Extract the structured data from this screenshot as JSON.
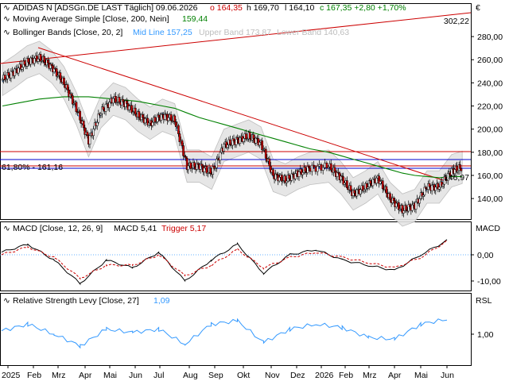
{
  "currency_symbol": "€",
  "header": {
    "line1_name": "ADIDAS N [ADSGn.DE LAST Täglich] 09.06.2026",
    "open_label": "o",
    "open": "164,35",
    "high_label": "h",
    "high": "169,70",
    "low_label": "l",
    "low": "164,10",
    "close_label": "c",
    "close": "167,35",
    "change": "+2,80",
    "change_pct": "+1,70%",
    "ma_label": "Moving Average Simple [Close, 200, Nein]",
    "ma_value": "159,44",
    "bb_label": "Bollinger Bands [Close, 20, 2]",
    "bb_mid": "Mid Line 157,25",
    "bb_upper": "Upper Band 173,87",
    "bb_lower": "Lower Band 140,63"
  },
  "annotations": {
    "trendline_value": "302,22",
    "fib_label": "61,80% - 161,16",
    "support_value": "146,97"
  },
  "macd": {
    "title": "MACD [Close, 12, 26, 9]",
    "value": "MACD 5,41",
    "trigger": "Trigger 5,17",
    "panel_label": "MACD"
  },
  "rsl": {
    "title": "Relative Strength Levy [Close, 27]",
    "value": "1,09",
    "panel_label": "RSL"
  },
  "colors": {
    "price_up": "#ffffff",
    "price_down": "#cc0000",
    "ma": "#008000",
    "bb_mid": "#3399ff",
    "bb_band": "#cccccc",
    "trend": "#cc0000",
    "macd": "#000000",
    "trigger": "#cc0000",
    "rsl": "#3399ff",
    "fib": "#0000cc"
  },
  "chart_data": [
    {
      "type": "line",
      "title": "ADIDAS N [ADSGn.DE LAST Täglich] 09.06.2026",
      "x": [
        "2025-01-02",
        "2025-01-16",
        "2025-01-30",
        "2025-02-13",
        "2025-02-27",
        "2025-03-13",
        "2025-03-27",
        "2025-04-10",
        "2025-04-24",
        "2025-05-08",
        "2025-05-22",
        "2025-06-05",
        "2025-06-19",
        "2025-07-03",
        "2025-07-17",
        "2025-07-31",
        "2025-08-14",
        "2025-08-28",
        "2025-09-11",
        "2025-09-25",
        "2025-10-09",
        "2025-10-23",
        "2025-11-06",
        "2025-11-20",
        "2025-12-04",
        "2025-12-18",
        "2026-01-08",
        "2026-01-22",
        "2026-02-05",
        "2026-02-19",
        "2026-03-05",
        "2026-03-19",
        "2026-04-02",
        "2026-04-16",
        "2026-04-30",
        "2026-05-14",
        "2026-05-28",
        "2026-06-09"
      ],
      "series": [
        {
          "name": "ADIDAS N",
          "values": [
            243,
            250,
            258,
            262,
            254,
            240,
            218,
            190,
            215,
            226,
            222,
            212,
            205,
            212,
            208,
            168,
            168,
            162,
            186,
            190,
            194,
            188,
            160,
            156,
            162,
            166,
            168,
            158,
            144,
            150,
            158,
            140,
            130,
            134,
            150,
            150,
            164,
            167
          ]
        },
        {
          "name": "Moving Average Simple",
          "values": [
            220,
            222,
            224,
            226,
            227,
            228,
            228,
            228,
            227,
            226,
            225,
            224,
            222,
            220,
            218,
            214,
            210,
            207,
            204,
            201,
            198,
            195,
            192,
            189,
            186,
            183,
            180,
            177,
            174,
            171,
            168,
            165,
            162,
            160,
            159,
            158,
            159,
            159
          ]
        }
      ],
      "ylim": [
        120,
        310
      ],
      "yticks": [
        140,
        160,
        180,
        200,
        220,
        240,
        260,
        280
      ]
    },
    {
      "type": "line",
      "title": "MACD [Close, 12, 26, 9]",
      "x": [
        "2025-01",
        "2025-02",
        "2025-03",
        "2025-04",
        "2025-05",
        "2025-06",
        "2025-07",
        "2025-08",
        "2025-09",
        "2025-10",
        "2025-11",
        "2025-12",
        "2026-01",
        "2026-02",
        "2026-03",
        "2026-04",
        "2026-05",
        "2026-06"
      ],
      "series": [
        {
          "name": "MACD",
          "values": [
            1,
            4,
            -2,
            -11,
            -2,
            -5,
            1,
            -10,
            -2,
            4,
            -7,
            0,
            2,
            -2,
            -4,
            -6,
            0,
            5.41
          ]
        },
        {
          "name": "Trigger",
          "values": [
            0,
            3,
            -1,
            -9,
            -4,
            -4,
            0,
            -8,
            -4,
            2,
            -5,
            -1,
            1,
            -1,
            -3,
            -5,
            -1,
            5.17
          ]
        }
      ],
      "ylim": [
        -12,
        8
      ],
      "yticks": [
        -10,
        0
      ]
    },
    {
      "type": "line",
      "title": "Relative Strength Levy [Close, 27]",
      "x": [
        "2025-01",
        "2025-02",
        "2025-03",
        "2025-04",
        "2025-05",
        "2025-06",
        "2025-07",
        "2025-08",
        "2025-09",
        "2025-10",
        "2025-11",
        "2025-12",
        "2026-01",
        "2026-02",
        "2026-03",
        "2026-04",
        "2026-05",
        "2026-06"
      ],
      "series": [
        {
          "name": "Relative Strength Levy",
          "values": [
            1.02,
            1.06,
            1.0,
            0.93,
            1.03,
            1.01,
            1.03,
            0.94,
            1.06,
            1.08,
            0.95,
            1.03,
            1.06,
            1.04,
            0.98,
            0.97,
            1.06,
            1.09
          ]
        }
      ],
      "ylim": [
        0.85,
        1.2
      ],
      "yticks": [
        1.0
      ]
    }
  ],
  "x_axis": {
    "labels": [
      "2025",
      "Feb",
      "Mrz",
      "Apr",
      "Mai",
      "Jun",
      "Jul",
      "Aug",
      "Sep",
      "Okt",
      "Nov",
      "Dez",
      "2026",
      "Feb",
      "Mrz",
      "Apr",
      "Mai",
      "Jun"
    ]
  },
  "price_axis": {
    "labels": [
      "280,00",
      "260,00",
      "240,00",
      "220,00",
      "200,00",
      "180,00",
      "160,00",
      "140,00"
    ]
  },
  "macd_axis": {
    "labels": [
      "0,00",
      "-10,00"
    ]
  },
  "rsl_axis": {
    "labels": [
      "1,00"
    ]
  }
}
